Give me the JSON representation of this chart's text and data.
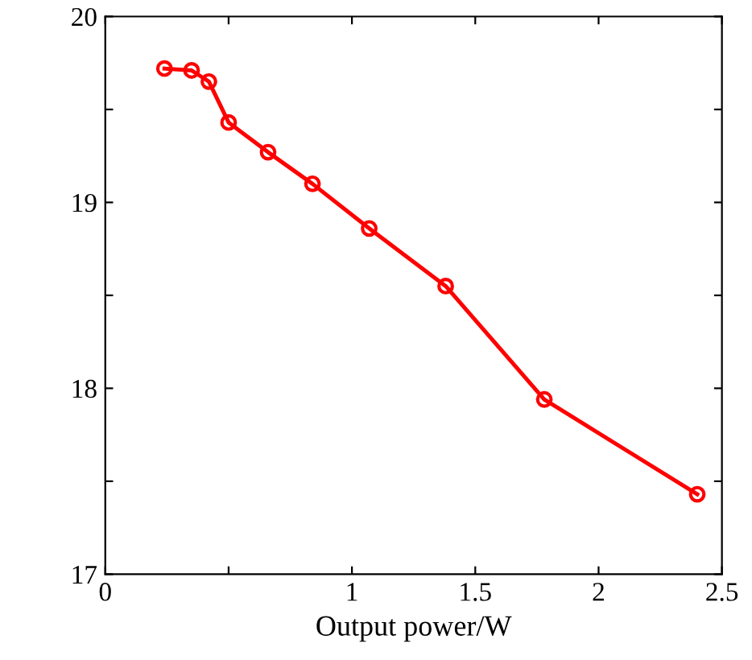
{
  "chart_data": {
    "type": "line",
    "xlabel": "Output power/W",
    "x": [
      0.24,
      0.35,
      0.42,
      0.5,
      0.66,
      0.84,
      1.07,
      1.38,
      1.78,
      2.4
    ],
    "series": [
      {
        "color": "#ff0000",
        "values": [
          19.72,
          19.71,
          19.65,
          19.43,
          19.27,
          19.1,
          18.86,
          18.55,
          17.94,
          17.43
        ]
      }
    ],
    "xlim": [
      0,
      2.5
    ],
    "ylim": [
      17,
      20
    ],
    "xticks": [
      0,
      {
        "value": 0.5,
        "label": null
      },
      1,
      1.5,
      2,
      2.5
    ],
    "yticks": [
      17,
      {
        "value": 17.5,
        "label": null
      },
      18,
      {
        "value": 18.5,
        "label": null
      },
      19,
      {
        "value": 19.5,
        "label": null
      },
      20
    ],
    "marker": "circle",
    "line_style": "solid",
    "grid": false
  }
}
